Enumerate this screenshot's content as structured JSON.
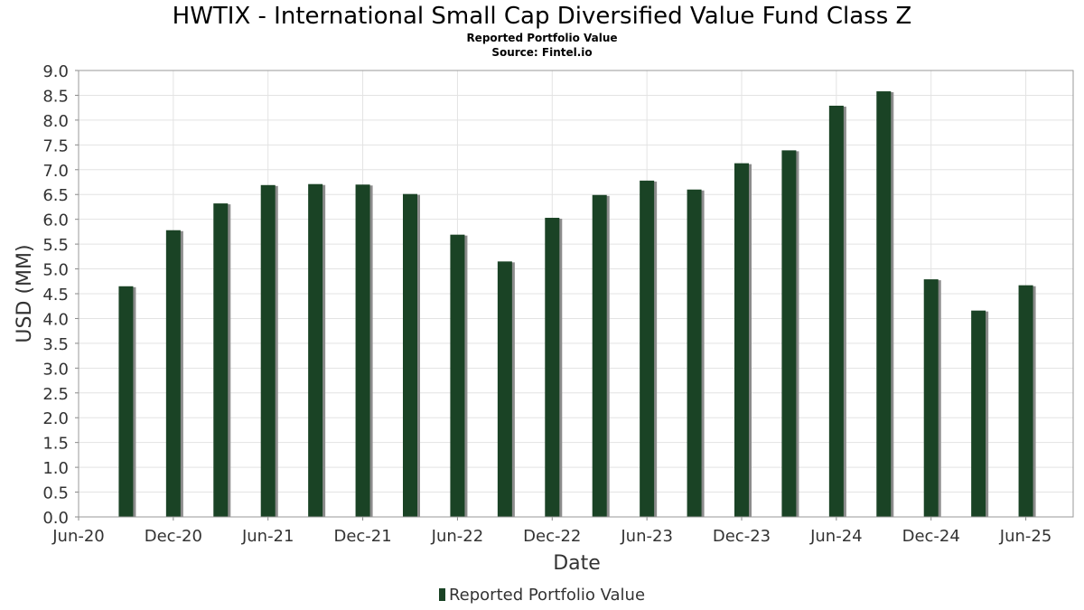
{
  "chart_data": {
    "type": "bar",
    "title": "HWTIX - International Small Cap Diversified Value Fund Class Z",
    "subtitle": "Reported Portfolio Value",
    "source": "Source: Fintel.io",
    "xlabel": "Date",
    "ylabel": "USD (MM)",
    "ylim": [
      0,
      9
    ],
    "y_ticks": [
      "0.0",
      "0.5",
      "1.0",
      "1.5",
      "2.0",
      "2.5",
      "3.0",
      "3.5",
      "4.0",
      "4.5",
      "5.0",
      "5.5",
      "6.0",
      "6.5",
      "7.0",
      "7.5",
      "8.0",
      "8.5",
      "9.0"
    ],
    "x_ticks": [
      "Jun-20",
      "Dec-20",
      "Jun-21",
      "Dec-21",
      "Jun-22",
      "Dec-22",
      "Jun-23",
      "Dec-23",
      "Jun-24",
      "Dec-24",
      "Jun-25"
    ],
    "x_range": [
      "2020-06",
      "2025-09"
    ],
    "grid": true,
    "legend_position": "bottom",
    "series": [
      {
        "name": "Reported Portfolio Value",
        "color": "#1a4325",
        "points": [
          {
            "date": "2020-09",
            "value": 4.65
          },
          {
            "date": "2020-12",
            "value": 5.78
          },
          {
            "date": "2021-03",
            "value": 6.32
          },
          {
            "date": "2021-06",
            "value": 6.69
          },
          {
            "date": "2021-09",
            "value": 6.71
          },
          {
            "date": "2021-12",
            "value": 6.7
          },
          {
            "date": "2022-03",
            "value": 6.51
          },
          {
            "date": "2022-06",
            "value": 5.69
          },
          {
            "date": "2022-09",
            "value": 5.15
          },
          {
            "date": "2022-12",
            "value": 6.03
          },
          {
            "date": "2023-03",
            "value": 6.49
          },
          {
            "date": "2023-06",
            "value": 6.78
          },
          {
            "date": "2023-09",
            "value": 6.6
          },
          {
            "date": "2023-12",
            "value": 7.13
          },
          {
            "date": "2024-03",
            "value": 7.39
          },
          {
            "date": "2024-06",
            "value": 8.29
          },
          {
            "date": "2024-09",
            "value": 8.58
          },
          {
            "date": "2024-12",
            "value": 4.79
          },
          {
            "date": "2025-03",
            "value": 4.16
          },
          {
            "date": "2025-06",
            "value": 4.67
          }
        ]
      }
    ]
  }
}
